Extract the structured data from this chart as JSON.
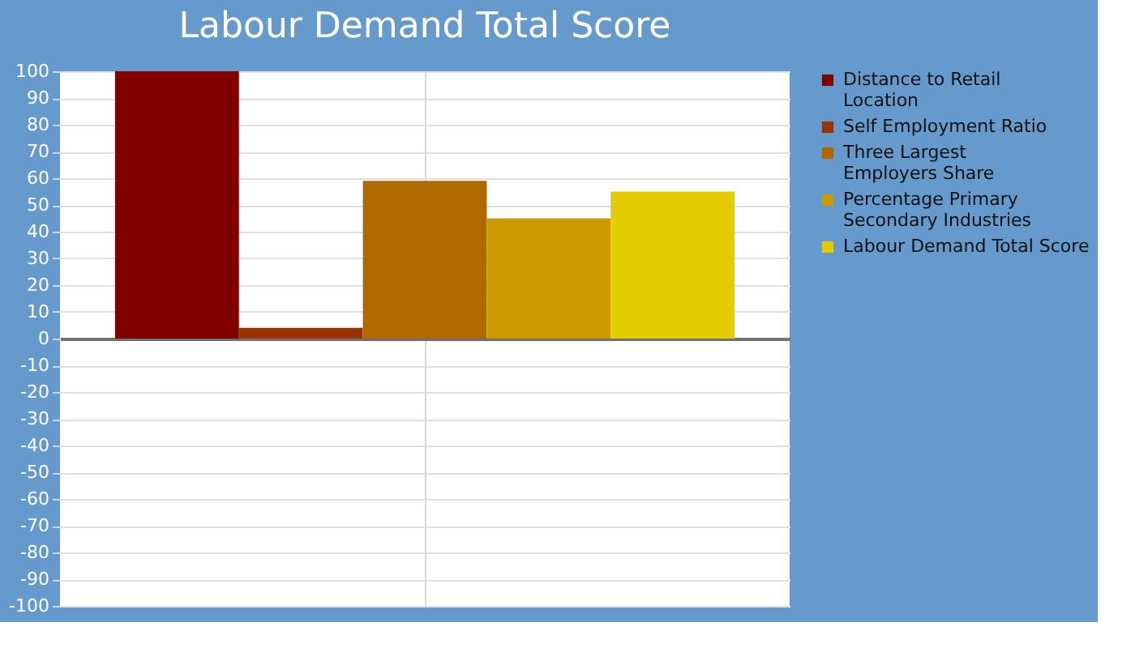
{
  "chart_data": {
    "type": "bar",
    "title": "Labour Demand Total Score",
    "categories": [
      null
    ],
    "series": [
      {
        "name": "Distance to Retail Location",
        "color": "#800000",
        "values": [
          100
        ]
      },
      {
        "name": "Self Employment Ratio",
        "color": "#993300",
        "values": [
          4
        ]
      },
      {
        "name": "Three Largest Employers Share",
        "color": "#b06800",
        "values": [
          59
        ]
      },
      {
        "name": "Percentage Primary Secondary Industries",
        "color": "#cc9900",
        "values": [
          45
        ]
      },
      {
        "name": "Labour Demand Total Score",
        "color": "#e3cc00",
        "values": [
          55
        ]
      }
    ],
    "ylim": [
      -100,
      100
    ],
    "yticks": [
      -100,
      -90,
      -80,
      -70,
      -60,
      -50,
      -40,
      -30,
      -20,
      -10,
      0,
      10,
      20,
      30,
      40,
      50,
      60,
      70,
      80,
      90,
      100
    ],
    "grid": true,
    "legend": "right"
  }
}
